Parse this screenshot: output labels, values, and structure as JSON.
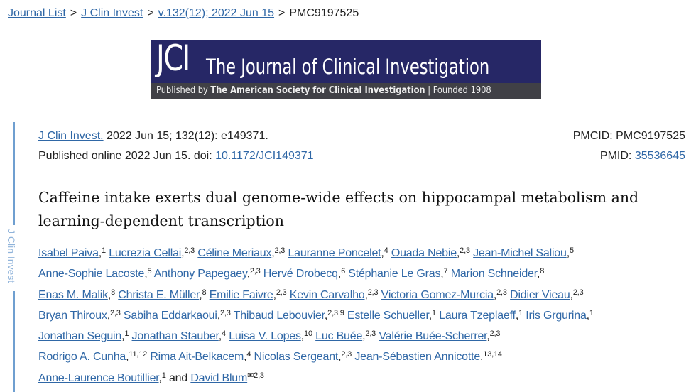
{
  "breadcrumb": [
    {
      "label": "Journal List",
      "link": true
    },
    {
      "label": "J Clin Invest",
      "link": true
    },
    {
      "label": "v.132(12); 2022 Jun 15",
      "link": true
    },
    {
      "label": "PMC9197525",
      "link": false
    }
  ],
  "breadcrumb_separator": ">",
  "logo": {
    "abbr": "JCI",
    "name": "The Journal of Clinical Investigation",
    "publisher_prefix": "Published by",
    "publisher": "The American Society for Clinical Investigation",
    "founded": "| Founded 1908"
  },
  "sidebar_label": "J Clin Invest",
  "citation": {
    "journal": "J Clin Invest.",
    "details": " 2022 Jun 15; 132(12): e149371.",
    "published": "Published online 2022 Jun 15. doi: ",
    "doi": "10.1172/JCI149371"
  },
  "ids": {
    "pmcid": "PMCID: PMC9197525",
    "pmid_label": "PMID: ",
    "pmid": "35536645"
  },
  "title": "Caffeine intake exerts dual genome-wide effects on hippocampal metabolism and learning-dependent transcription",
  "colors": {
    "link": "#2f67a6",
    "sidebar": "#6f9fd0",
    "logo_bg": "#262766"
  },
  "authors_rows": [
    [
      [
        "Isabel Paiva",
        "1"
      ],
      [
        "Lucrezia Cellai",
        "2,3"
      ],
      [
        "Céline Meriaux",
        "2,3"
      ],
      [
        "Lauranne Poncelet",
        "4"
      ],
      [
        "Ouada Nebie",
        "2,3"
      ],
      [
        "Jean-Michel Saliou",
        "5"
      ]
    ],
    [
      [
        "Anne-Sophie Lacoste",
        "5"
      ],
      [
        "Anthony Papegaey",
        "2,3"
      ],
      [
        "Hervé Drobecq",
        "6"
      ],
      [
        "Stéphanie Le Gras",
        "7"
      ],
      [
        "Marion Schneider",
        "8"
      ]
    ],
    [
      [
        "Enas M. Malik",
        "8"
      ],
      [
        "Christa E. Müller",
        "8"
      ],
      [
        "Emilie Faivre",
        "2,3"
      ],
      [
        "Kevin Carvalho",
        "2,3"
      ],
      [
        "Victoria Gomez-Murcia",
        "2,3"
      ],
      [
        "Didier Vieau",
        "2,3"
      ]
    ],
    [
      [
        "Bryan Thiroux",
        "2,3"
      ],
      [
        "Sabiha Eddarkaoui",
        "2,3"
      ],
      [
        "Thibaud Lebouvier",
        "2,3,9"
      ],
      [
        "Estelle Schueller",
        "1"
      ],
      [
        "Laura Tzeplaeff",
        "1"
      ],
      [
        "Iris Grgurina",
        "1"
      ]
    ],
    [
      [
        "Jonathan Seguin",
        "1"
      ],
      [
        "Jonathan Stauber",
        "4"
      ],
      [
        "Luisa V. Lopes",
        "10"
      ],
      [
        "Luc Buée",
        "2,3"
      ],
      [
        "Valérie Buée-Scherrer",
        "2,3"
      ]
    ],
    [
      [
        "Rodrigo A. Cunha",
        "11,12"
      ],
      [
        "Rima Ait-Belkacem",
        "4"
      ],
      [
        "Nicolas Sergeant",
        "2,3"
      ],
      [
        "Jean-Sébastien Annicotte",
        "13,14"
      ]
    ],
    [
      [
        "Anne-Laurence Boutillier",
        "1"
      ],
      [
        "David Blum",
        "✉2,3"
      ]
    ]
  ],
  "authors_conjunction": "and"
}
